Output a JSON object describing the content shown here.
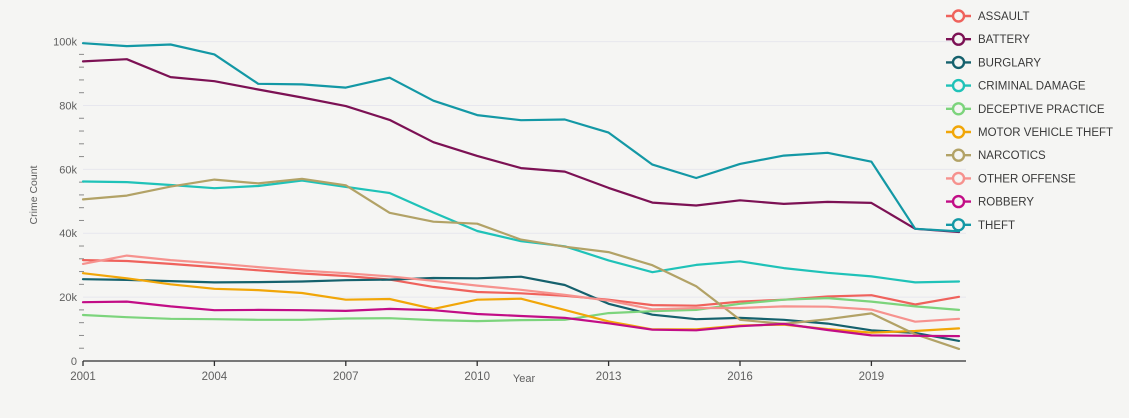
{
  "colors": {
    "background": "#f5f5f3",
    "gridline": "#e7e7ee",
    "axis_line": "#2f2f2f",
    "tick_text": "#5f5f5f",
    "legend_text": "#3a3a3a",
    "minor_tick": "#8a8a8a"
  },
  "chart_data": {
    "type": "line",
    "title": "",
    "xlabel": "Year",
    "ylabel": "Crime Count",
    "y_unit": "thousands",
    "grid": true,
    "legend_position": "right",
    "legend_marker": "open-circle",
    "xlim": [
      2001,
      2021
    ],
    "ylim": [
      0,
      104
    ],
    "x_ticks": [
      2001,
      2004,
      2007,
      2010,
      2013,
      2016,
      2019
    ],
    "y_ticks": [
      0,
      20,
      40,
      60,
      80,
      100
    ],
    "y_tick_labels": [
      "0",
      "20k",
      "40k",
      "60k",
      "80k",
      "100k"
    ],
    "y_minor_tick_step": 4,
    "years": [
      2001,
      2002,
      2003,
      2004,
      2005,
      2006,
      2007,
      2008,
      2009,
      2010,
      2011,
      2012,
      2013,
      2014,
      2015,
      2016,
      2017,
      2018,
      2019,
      2020,
      2021
    ],
    "series": [
      {
        "name": "ASSAULT",
        "color": "#ef625c",
        "values": [
          31.6,
          31.3,
          30.4,
          29.4,
          28.4,
          27.4,
          26.6,
          25.5,
          23.2,
          21.6,
          21.2,
          20.4,
          19.2,
          17.5,
          17.3,
          18.6,
          19.2,
          20.2,
          20.6,
          17.7,
          20.1
        ]
      },
      {
        "name": "BATTERY",
        "color": "#7c1154",
        "values": [
          93.8,
          94.5,
          88.9,
          87.6,
          85.0,
          82.5,
          79.8,
          75.5,
          68.5,
          64.2,
          60.4,
          59.3,
          54.2,
          49.6,
          48.7,
          50.3,
          49.2,
          49.8,
          49.5,
          41.4,
          40.4
        ]
      },
      {
        "name": "BURGLARY",
        "color": "#15616d",
        "values": [
          25.6,
          25.4,
          25.0,
          24.6,
          24.7,
          24.9,
          25.3,
          25.5,
          26.0,
          25.9,
          26.4,
          23.8,
          17.9,
          14.5,
          13.1,
          13.5,
          12.9,
          11.7,
          9.6,
          8.8,
          6.3
        ]
      },
      {
        "name": "CRIMINAL DAMAGE",
        "color": "#1fc2b8",
        "values": [
          56.2,
          56.0,
          55.1,
          54.1,
          54.8,
          56.5,
          54.5,
          52.6,
          46.5,
          40.7,
          37.5,
          35.9,
          31.5,
          27.8,
          30.1,
          31.2,
          29.1,
          27.6,
          26.5,
          24.6,
          24.9
        ]
      },
      {
        "name": "DECEPTIVE PRACTICE",
        "color": "#7cd47c",
        "values": [
          14.4,
          13.7,
          13.2,
          13.1,
          12.9,
          12.9,
          13.3,
          13.4,
          12.8,
          12.5,
          12.8,
          12.9,
          15.0,
          15.6,
          16.0,
          17.9,
          19.2,
          19.7,
          18.6,
          17.1,
          16.0
        ]
      },
      {
        "name": "MOTOR VEHICLE THEFT",
        "color": "#f1a608",
        "values": [
          27.5,
          25.9,
          24.0,
          22.6,
          22.2,
          21.3,
          19.2,
          19.4,
          16.3,
          19.2,
          19.5,
          16.0,
          12.4,
          9.9,
          9.9,
          11.1,
          11.4,
          10.0,
          8.9,
          9.4,
          10.2
        ]
      },
      {
        "name": "NARCOTICS",
        "color": "#b2a266",
        "values": [
          50.6,
          51.8,
          54.6,
          56.8,
          55.6,
          57.0,
          55.0,
          46.4,
          43.6,
          43.0,
          38.0,
          35.8,
          34.1,
          30.0,
          23.4,
          12.9,
          11.6,
          13.1,
          14.9,
          8.4,
          3.8
        ]
      },
      {
        "name": "OTHER OFFENSE",
        "color": "#f6928e",
        "values": [
          30.4,
          33.0,
          31.6,
          30.6,
          29.4,
          28.3,
          27.5,
          26.5,
          25.1,
          23.6,
          22.3,
          20.7,
          18.9,
          16.2,
          16.6,
          16.6,
          17.1,
          17.0,
          16.1,
          12.3,
          13.2
        ]
      },
      {
        "name": "ROBBERY",
        "color": "#c20d86",
        "values": [
          18.4,
          18.6,
          17.1,
          15.9,
          16.0,
          15.9,
          15.7,
          16.3,
          15.9,
          14.7,
          14.1,
          13.5,
          11.8,
          9.8,
          9.6,
          10.9,
          11.6,
          9.7,
          8.0,
          7.9,
          7.8
        ]
      },
      {
        "name": "THEFT",
        "color": "#1398a5",
        "values": [
          99.5,
          98.6,
          99.1,
          96.0,
          86.8,
          86.6,
          85.6,
          88.7,
          81.5,
          77.0,
          75.4,
          75.6,
          71.5,
          61.5,
          57.3,
          61.7,
          64.3,
          65.2,
          62.4,
          41.4,
          40.6
        ]
      }
    ]
  }
}
